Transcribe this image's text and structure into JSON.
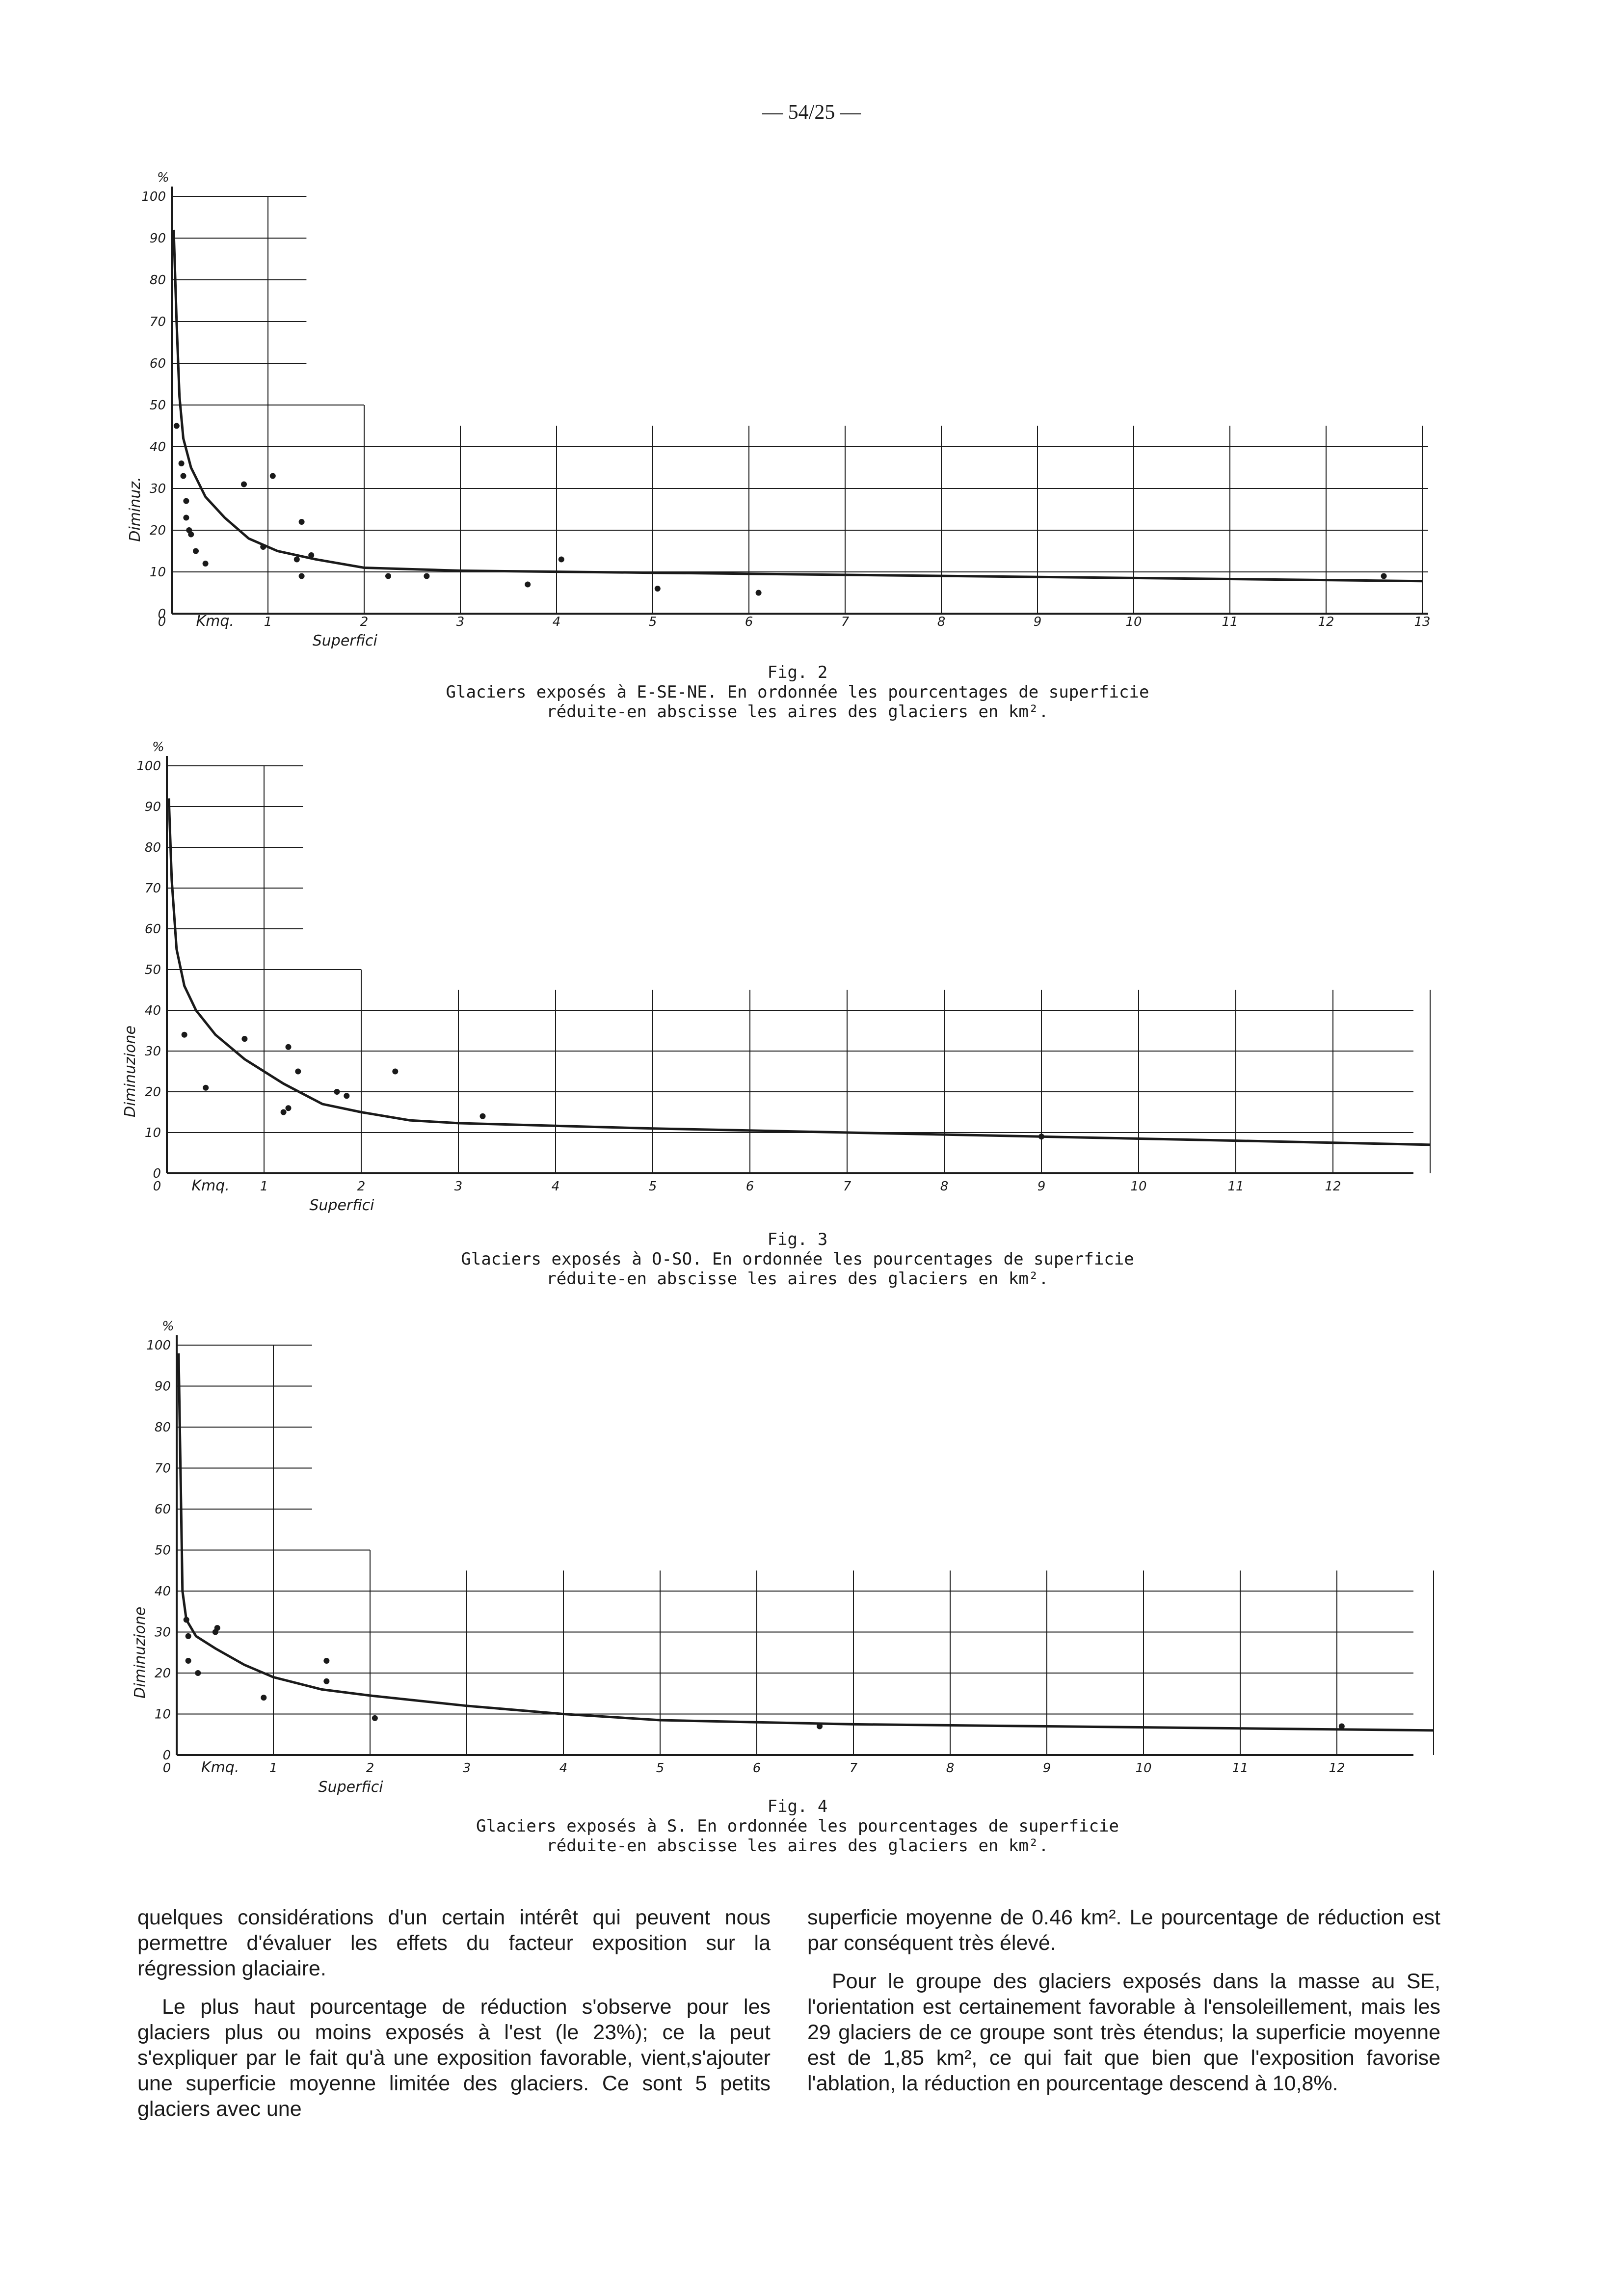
{
  "page_number": "— 54/25 —",
  "chart_data": [
    {
      "type": "scatter",
      "figure": "Fig. 2",
      "caption": "Glaciers exposés à E-SE-NE. En ordonnée les pourcentages de superficie réduite-en abscisse les aires des glaciers en km².",
      "xlabel": "Superfici",
      "ylabel": "Diminuz.",
      "x_unit": "Kmq.",
      "y_unit": "%",
      "x_ticks": [
        "0",
        "1",
        "2",
        "3",
        "4",
        "5",
        "6",
        "7",
        "8",
        "9",
        "10",
        "11",
        "12",
        "13"
      ],
      "y_ticks": [
        "0",
        "10",
        "20",
        "30",
        "40",
        "50",
        "60",
        "70",
        "80",
        "90",
        "100"
      ],
      "xlim": [
        0,
        13
      ],
      "ylim": [
        0,
        100
      ],
      "points": [
        [
          0.05,
          45
        ],
        [
          0.1,
          36
        ],
        [
          0.12,
          33
        ],
        [
          0.15,
          27
        ],
        [
          0.15,
          23
        ],
        [
          0.18,
          20
        ],
        [
          0.2,
          19
        ],
        [
          0.25,
          15
        ],
        [
          0.35,
          12
        ],
        [
          0.75,
          31
        ],
        [
          0.95,
          16
        ],
        [
          1.05,
          33
        ],
        [
          1.35,
          22
        ],
        [
          1.3,
          13
        ],
        [
          1.45,
          14
        ],
        [
          1.35,
          9
        ],
        [
          2.25,
          9
        ],
        [
          2.65,
          9
        ],
        [
          3.7,
          7
        ],
        [
          4.05,
          13
        ],
        [
          5.05,
          6
        ],
        [
          6.1,
          5
        ],
        [
          12.6,
          9
        ]
      ],
      "curve": [
        [
          0.02,
          92
        ],
        [
          0.05,
          70
        ],
        [
          0.08,
          52
        ],
        [
          0.12,
          42
        ],
        [
          0.2,
          35
        ],
        [
          0.35,
          28
        ],
        [
          0.55,
          23
        ],
        [
          0.8,
          18
        ],
        [
          1.1,
          15
        ],
        [
          1.5,
          13
        ],
        [
          2,
          11
        ],
        [
          3,
          10.3
        ],
        [
          5,
          9.8
        ],
        [
          7,
          9.3
        ],
        [
          9,
          8.8
        ],
        [
          11,
          8.3
        ],
        [
          13,
          7.8
        ]
      ]
    },
    {
      "type": "scatter",
      "figure": "Fig. 3",
      "caption": "Glaciers exposés à O-SO. En ordonnée les pourcentages de superficie réduite-en abscisse les aires des glaciers en km².",
      "xlabel": "Superfici",
      "ylabel": "Diminuzione",
      "x_unit": "Kmq.",
      "y_unit": "%",
      "x_ticks": [
        "0",
        "1",
        "2",
        "3",
        "4",
        "5",
        "6",
        "7",
        "8",
        "9",
        "10",
        "11",
        "12"
      ],
      "y_ticks": [
        "0",
        "10",
        "20",
        "30",
        "40",
        "50",
        "60",
        "70",
        "80",
        "90",
        "100"
      ],
      "xlim": [
        0,
        13
      ],
      "ylim": [
        0,
        100
      ],
      "points": [
        [
          0.18,
          34
        ],
        [
          0.4,
          21
        ],
        [
          0.8,
          33
        ],
        [
          1.25,
          31
        ],
        [
          1.35,
          25
        ],
        [
          1.25,
          16
        ],
        [
          1.2,
          15
        ],
        [
          1.75,
          20
        ],
        [
          1.85,
          19
        ],
        [
          2.35,
          25
        ],
        [
          3.25,
          14
        ],
        [
          9.0,
          9
        ]
      ],
      "curve": [
        [
          0.02,
          92
        ],
        [
          0.05,
          72
        ],
        [
          0.1,
          55
        ],
        [
          0.18,
          46
        ],
        [
          0.3,
          40
        ],
        [
          0.5,
          34
        ],
        [
          0.8,
          28
        ],
        [
          1.2,
          22
        ],
        [
          1.6,
          17
        ],
        [
          2,
          15
        ],
        [
          2.5,
          13
        ],
        [
          3,
          12.3
        ],
        [
          5,
          11
        ],
        [
          7,
          10
        ],
        [
          9,
          9
        ],
        [
          11,
          8
        ],
        [
          13,
          7
        ]
      ]
    },
    {
      "type": "scatter",
      "figure": "Fig. 4",
      "caption": "Glaciers exposés à S. En ordonnée les pourcentages de superficie réduite-en abscisse les aires des glaciers en km².",
      "xlabel": "Superfici",
      "ylabel": "Diminuzione",
      "x_unit": "Kmq.",
      "y_unit": "%",
      "x_ticks": [
        "0",
        "1",
        "2",
        "3",
        "4",
        "5",
        "6",
        "7",
        "8",
        "9",
        "10",
        "11",
        "12"
      ],
      "y_ticks": [
        "0",
        "10",
        "20",
        "30",
        "40",
        "50",
        "60",
        "70",
        "80",
        "90",
        "100"
      ],
      "xlim": [
        0,
        13
      ],
      "ylim": [
        0,
        100
      ],
      "points": [
        [
          0.1,
          33
        ],
        [
          0.12,
          29
        ],
        [
          0.12,
          23
        ],
        [
          0.22,
          20
        ],
        [
          0.4,
          30
        ],
        [
          0.42,
          31
        ],
        [
          0.9,
          14
        ],
        [
          1.55,
          23
        ],
        [
          1.55,
          18
        ],
        [
          2.05,
          9
        ],
        [
          6.65,
          7
        ],
        [
          12.05,
          7
        ]
      ],
      "curve": [
        [
          0.02,
          98
        ],
        [
          0.06,
          40
        ],
        [
          0.1,
          33
        ],
        [
          0.2,
          29
        ],
        [
          0.4,
          26
        ],
        [
          0.7,
          22
        ],
        [
          1,
          19
        ],
        [
          1.5,
          16
        ],
        [
          2,
          14.5
        ],
        [
          3,
          12
        ],
        [
          4,
          10
        ],
        [
          5,
          8.5
        ],
        [
          7,
          7.5
        ],
        [
          9,
          7
        ],
        [
          11,
          6.5
        ],
        [
          13,
          6
        ]
      ]
    }
  ],
  "body_text": {
    "left": [
      "quelques considérations d'un certain intérêt qui peuvent nous permettre d'évaluer les effets du facteur exposition sur la régression glaciaire.",
      "Le plus haut pourcentage de réduction s'observe pour les glaciers plus ou moins exposés à l'est (le 23%); ce la peut s'expliquer par le fait qu'à une exposition favorable, vient,s'ajouter une superficie moyenne limitée des glaciers. Ce sont 5 petits glaciers avec une"
    ],
    "right": [
      "superficie moyenne de 0.46 km². Le pourcentage de réduction est par conséquent très élevé.",
      "Pour le groupe des glaciers exposés dans la masse au SE, l'orientation est certainement favorable à l'ensoleillement, mais les 29 glaciers de ce groupe sont très étendus; la superficie moyenne est de 1,85 km², ce qui fait que bien que l'exposition favorise l'ablation, la réduction en pourcentage descend à 10,8%."
    ]
  }
}
